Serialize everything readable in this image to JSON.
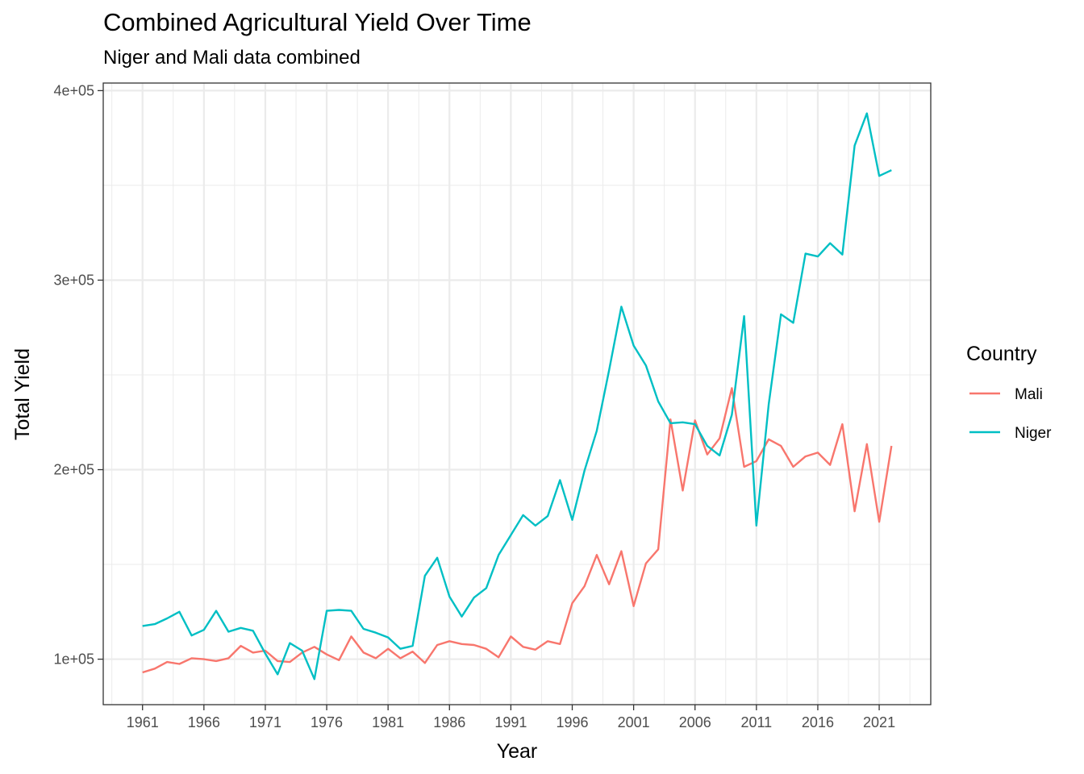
{
  "chart_data": {
    "type": "line",
    "title": "Combined Agricultural Yield Over Time",
    "subtitle": "Niger and Mali data combined",
    "xlabel": "Year",
    "ylabel": "Total Yield",
    "xlim": [
      1957.8,
      2025.2
    ],
    "ylim": [
      76000,
      404000
    ],
    "x_ticks": [
      1961,
      1966,
      1971,
      1976,
      1981,
      1986,
      1991,
      1996,
      2001,
      2006,
      2011,
      2016,
      2021
    ],
    "x_tick_labels": [
      "1961",
      "1966",
      "1971",
      "1976",
      "1981",
      "1986",
      "1991",
      "1996",
      "2001",
      "2006",
      "2011",
      "2016",
      "2021"
    ],
    "y_ticks": [
      100000,
      200000,
      300000,
      400000
    ],
    "y_tick_labels": [
      "1e+05",
      "2e+05",
      "3e+05",
      "4e+05"
    ],
    "grid": true,
    "legend": {
      "title": "Country",
      "placement": "right"
    },
    "x": [
      1961,
      1962,
      1963,
      1964,
      1965,
      1966,
      1967,
      1968,
      1969,
      1970,
      1971,
      1972,
      1973,
      1974,
      1975,
      1976,
      1977,
      1978,
      1979,
      1980,
      1981,
      1982,
      1983,
      1984,
      1985,
      1986,
      1987,
      1988,
      1989,
      1990,
      1991,
      1992,
      1993,
      1994,
      1995,
      1996,
      1997,
      1998,
      1999,
      2000,
      2001,
      2002,
      2003,
      2004,
      2005,
      2006,
      2007,
      2008,
      2009,
      2010,
      2011,
      2012,
      2013,
      2014,
      2015,
      2016,
      2017,
      2018,
      2019,
      2020,
      2021,
      2022
    ],
    "series": [
      {
        "name": "Mali",
        "color": "#F8766D",
        "values": [
          93000,
          95000,
          98500,
          97500,
          100500,
          100000,
          99000,
          100500,
          107000,
          103500,
          104500,
          99000,
          98500,
          103500,
          106500,
          102500,
          99500,
          112000,
          103500,
          100500,
          105500,
          100500,
          104000,
          98000,
          107500,
          109500,
          108000,
          107500,
          105500,
          101000,
          112000,
          106500,
          105000,
          109500,
          108000,
          129500,
          138500,
          155000,
          139500,
          157000,
          128000,
          150500,
          158000,
          226500,
          189000,
          226000,
          208000,
          216500,
          243000,
          201500,
          204500,
          216000,
          212500,
          201500,
          207000,
          209000,
          202500,
          224000,
          178000,
          213500,
          172500,
          212500
        ]
      },
      {
        "name": "Niger",
        "color": "#00BFC4",
        "values": [
          117500,
          118500,
          121500,
          125000,
          112500,
          115500,
          125500,
          114500,
          116500,
          115000,
          103000,
          92000,
          108500,
          104500,
          89500,
          125500,
          126000,
          125500,
          116000,
          114000,
          111500,
          105500,
          107000,
          144000,
          153500,
          133000,
          122500,
          132500,
          137500,
          155000,
          165500,
          176000,
          170500,
          175500,
          194500,
          173500,
          199500,
          220500,
          252500,
          286000,
          265500,
          255000,
          236000,
          224500,
          225000,
          224000,
          212500,
          207500,
          229000,
          281000,
          170500,
          234500,
          282000,
          277500,
          314000,
          312500,
          319500,
          313500,
          371000,
          388000,
          355000,
          358000
        ]
      }
    ]
  }
}
